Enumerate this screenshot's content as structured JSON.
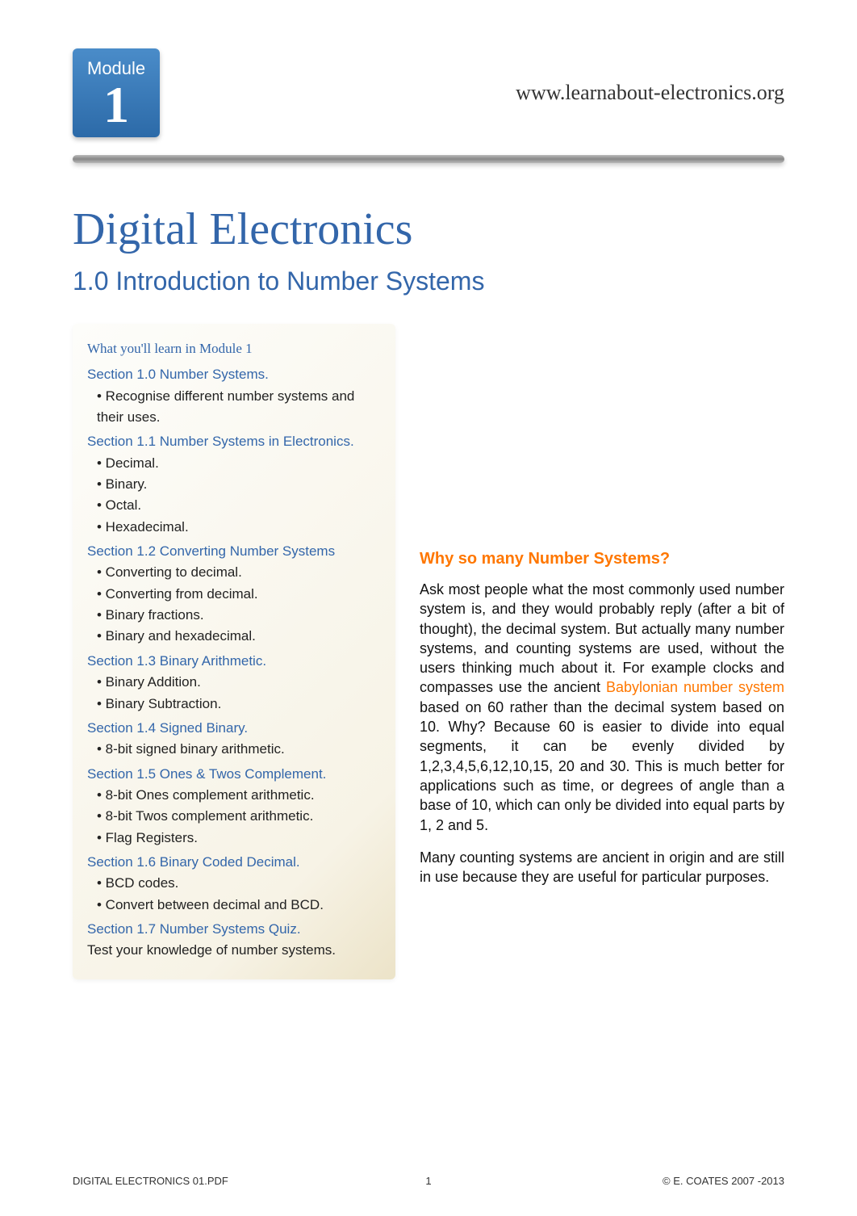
{
  "colors": {
    "blue": "#3366aa",
    "orange": "#ff7700",
    "badge_grad_top": "#4a8cc9",
    "badge_grad_bottom": "#2c6aa8",
    "rule_mid": "#888888",
    "sidebar_bg_start": "#fdfdfa",
    "sidebar_bg_end": "#ece3c8",
    "body_text": "#111111",
    "page_bg": "#ffffff"
  },
  "typography": {
    "title_family": "Georgia, Times New Roman, serif",
    "body_family": "Arial, Helvetica, sans-serif",
    "title_size_pt": 42,
    "subtitle_size_pt": 24,
    "sidebar_size_pt": 12,
    "body_size_pt": 13
  },
  "header": {
    "module_label": "Module",
    "module_number": "1",
    "site_url": "www.learnabout-electronics.org"
  },
  "title": "Digital Electronics",
  "subtitle": "1.0 Introduction to Number Systems",
  "sidebar": {
    "box_title": "What you'll learn in Module 1",
    "sections": [
      {
        "heading": "Section 1.0 Number Systems.",
        "items": [
          "• Recognise different number systems and their uses."
        ]
      },
      {
        "heading": "Section 1.1 Number Systems in Electronics.",
        "items": [
          "• Decimal.",
          "• Binary.",
          "• Octal.",
          "• Hexadecimal."
        ]
      },
      {
        "heading": "Section 1.2 Converting Number Systems",
        "items": [
          "• Converting to decimal.",
          "• Converting from decimal.",
          "• Binary fractions.",
          "• Binary and hexadecimal."
        ]
      },
      {
        "heading": "Section 1.3 Binary Arithmetic.",
        "items": [
          "• Binary Addition.",
          "• Binary Subtraction."
        ]
      },
      {
        "heading": "Section 1.4 Signed Binary.",
        "items": [
          "• 8-bit signed binary arithmetic."
        ]
      },
      {
        "heading": "Section 1.5 Ones & Twos Complement.",
        "items": [
          "• 8-bit Ones complement arithmetic.",
          "• 8-bit Twos complement arithmetic.",
          "• Flag Registers."
        ]
      },
      {
        "heading": "Section 1.6 Binary Coded Decimal.",
        "items": [
          "• BCD codes.",
          "• Convert between decimal and BCD."
        ]
      },
      {
        "heading": "Section 1.7 Number Systems Quiz.",
        "items": [],
        "footer": "Test your knowledge of number systems."
      }
    ]
  },
  "right": {
    "heading": "Why so many Number Systems?",
    "para1_pre": "Ask most people what the most commonly used number system is, and they would probably reply (after a bit of thought), the decimal system. But actually many number systems, and counting systems are used, without the users thinking much about it. For example clocks and compasses use the ancient ",
    "para1_link": "Babylonian number system",
    "para1_post": " based on 60 rather than the decimal system based on 10. Why? Because 60 is easier to divide into equal segments, it can be evenly divided by 1,2,3,4,5,6,12,10,15, 20 and 30. This is much better for applications such as time, or degrees of angle than a base of 10, which can only be divided into equal parts by 1, 2 and 5.",
    "para2": "Many counting systems are ancient in origin and are still in use because they are useful for particular purposes."
  },
  "footer": {
    "left": "DIGITAL ELECTRONICS 01.PDF",
    "page": "1",
    "right": "© E. COATES 2007 -2013"
  }
}
